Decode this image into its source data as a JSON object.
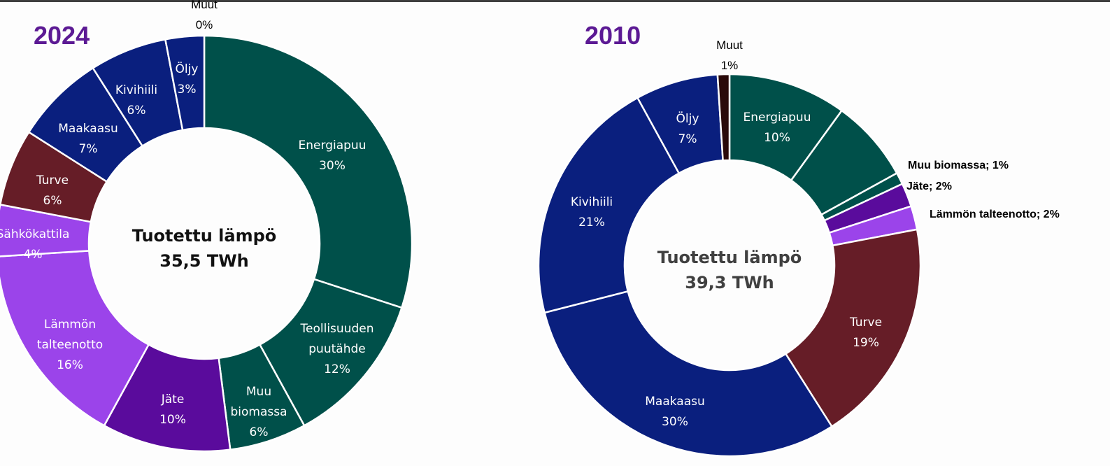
{
  "chart_data": [
    {
      "type": "pie",
      "title": "2024",
      "center_text": [
        "Tuotettu lämpö",
        "35,5 TWh"
      ],
      "center_color": "#111111",
      "segments": [
        {
          "label": [
            "Energiapuu"
          ],
          "value": 30,
          "value_text": "30%",
          "color": "#00504a"
        },
        {
          "label": [
            "Teollisuuden",
            "puutähde"
          ],
          "value": 12,
          "value_text": "12%",
          "color": "#00504a"
        },
        {
          "label": [
            "Muu",
            "biomassa"
          ],
          "value": 6,
          "value_text": "6%",
          "color": "#00504a"
        },
        {
          "label": [
            "Jäte"
          ],
          "value": 10,
          "value_text": "10%",
          "color": "#5a0b9c"
        },
        {
          "label": [
            "Lämmön",
            "talteenotto"
          ],
          "value": 16,
          "value_text": "16%",
          "color": "#9b44ea"
        },
        {
          "label": [
            "Sähkökattila"
          ],
          "value": 4,
          "value_text": "4%",
          "color": "#9b44ea"
        },
        {
          "label": [
            "Turve"
          ],
          "value": 6,
          "value_text": "6%",
          "color": "#661d27"
        },
        {
          "label": [
            "Maakaasu"
          ],
          "value": 7,
          "value_text": "7%",
          "color": "#0a1f7e"
        },
        {
          "label": [
            "Kivihiili"
          ],
          "value": 6,
          "value_text": "6%",
          "color": "#0a1f7e"
        },
        {
          "label": [
            "Öljy"
          ],
          "value": 3,
          "value_text": "3%",
          "color": "#0a1f7e"
        },
        {
          "label": [
            "Muut"
          ],
          "value": 0,
          "value_text": "0%",
          "color": "#2a0a0a",
          "outside": true
        }
      ]
    },
    {
      "type": "pie",
      "title": "2010",
      "center_text": [
        "Tuotettu lämpö",
        "39,3 TWh"
      ],
      "center_color": "#404040",
      "segments": [
        {
          "label": [
            "Energiapuu"
          ],
          "value": 10,
          "value_text": "10%",
          "color": "#00504a"
        },
        {
          "label": [],
          "value": 7,
          "value_text": "",
          "color": "#00504a"
        },
        {
          "label": [
            "Muu biomassa"
          ],
          "value": 1,
          "value_text": "1%",
          "color": "#00504a",
          "side": true
        },
        {
          "label": [
            "Jäte"
          ],
          "value": 2,
          "value_text": "2%",
          "color": "#5a0b9c",
          "side": true
        },
        {
          "label": [
            "Lämmön talteenotto"
          ],
          "value": 2,
          "value_text": "2%",
          "color": "#9b44ea",
          "side": true
        },
        {
          "label": [
            "Turve"
          ],
          "value": 19,
          "value_text": "19%",
          "color": "#661d27"
        },
        {
          "label": [
            "Maakaasu"
          ],
          "value": 30,
          "value_text": "30%",
          "color": "#0a1f7e"
        },
        {
          "label": [
            "Kivihiili"
          ],
          "value": 21,
          "value_text": "21%",
          "color": "#0a1f7e"
        },
        {
          "label": [
            "Öljy"
          ],
          "value": 7,
          "value_text": "7%",
          "color": "#0a1f7e"
        },
        {
          "label": [
            "Muut"
          ],
          "value": 1,
          "value_text": "1%",
          "color": "#2a0a0a",
          "outside": true
        }
      ]
    }
  ]
}
